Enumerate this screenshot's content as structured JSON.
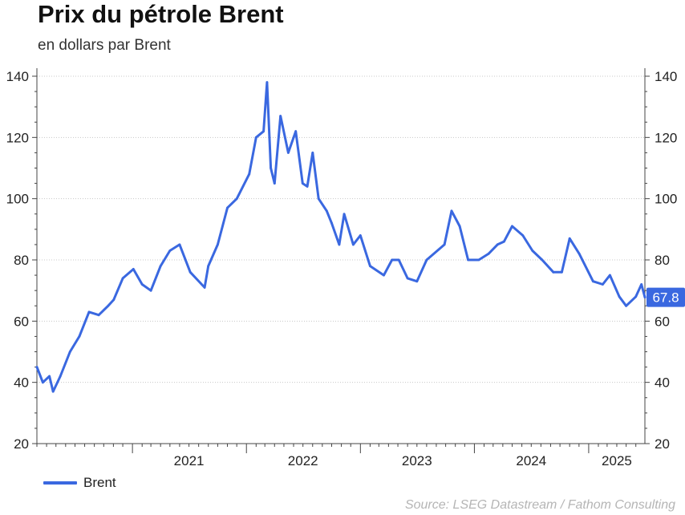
{
  "header": {
    "title": "Prix du pétrole Brent",
    "subtitle": "en dollars par Brent"
  },
  "legend": {
    "label": "Brent"
  },
  "source": "Source: LSEG Datastream / Fathom Consulting",
  "colors": {
    "series": "#3a68e0",
    "grid": "#c8c8c8",
    "axis": "#444444"
  },
  "chart_data": {
    "type": "line",
    "title": "Prix du pétrole Brent",
    "subtitle": "en dollars par Brent",
    "xlabel": "",
    "ylabel": "",
    "ylim": [
      20,
      140
    ],
    "xlim": [
      "2020-03-01",
      "2025-06-30"
    ],
    "yticks": [
      20,
      40,
      60,
      80,
      100,
      120,
      140
    ],
    "xticks": [
      "2021",
      "2022",
      "2023",
      "2024",
      "2025"
    ],
    "grid": true,
    "dual_y_axis": true,
    "legend_position": "bottom-left",
    "last_value_label": "67.8",
    "series": [
      {
        "name": "Brent",
        "x": [
          "2020-03-01",
          "2020-03-20",
          "2020-04-10",
          "2020-04-22",
          "2020-05-15",
          "2020-06-15",
          "2020-07-15",
          "2020-08-15",
          "2020-09-15",
          "2020-10-15",
          "2020-11-02",
          "2020-12-01",
          "2021-01-04",
          "2021-02-01",
          "2021-03-01",
          "2021-04-01",
          "2021-05-01",
          "2021-06-01",
          "2021-07-05",
          "2021-08-20",
          "2021-09-01",
          "2021-10-01",
          "2021-11-01",
          "2021-12-01",
          "2022-01-10",
          "2022-02-01",
          "2022-02-25",
          "2022-03-08",
          "2022-03-20",
          "2022-04-01",
          "2022-04-20",
          "2022-05-15",
          "2022-06-08",
          "2022-06-30",
          "2022-07-15",
          "2022-08-01",
          "2022-08-20",
          "2022-09-15",
          "2022-10-01",
          "2022-10-25",
          "2022-11-10",
          "2022-12-09",
          "2023-01-01",
          "2023-02-01",
          "2023-03-17",
          "2023-04-12",
          "2023-05-04",
          "2023-06-01",
          "2023-07-01",
          "2023-08-01",
          "2023-09-27",
          "2023-10-20",
          "2023-11-15",
          "2023-12-12",
          "2024-01-15",
          "2024-02-15",
          "2024-03-15",
          "2024-04-05",
          "2024-05-01",
          "2024-06-04",
          "2024-07-05",
          "2024-08-05",
          "2024-09-10",
          "2024-10-07",
          "2024-11-01",
          "2024-12-02",
          "2025-01-15",
          "2025-02-15",
          "2025-03-10",
          "2025-04-09",
          "2025-05-01",
          "2025-06-01",
          "2025-06-19",
          "2025-06-30"
        ],
        "values": [
          45,
          40,
          42,
          37,
          42,
          50,
          55,
          63,
          62,
          65,
          67,
          74,
          77,
          72,
          70,
          78,
          83,
          85,
          76,
          71,
          78,
          85,
          97,
          100,
          108,
          120,
          122,
          138,
          110,
          105,
          127,
          115,
          122,
          105,
          104,
          115,
          100,
          96,
          92,
          85,
          95,
          85,
          88,
          78,
          75,
          80,
          80,
          74,
          73,
          80,
          85,
          96,
          91,
          80,
          80,
          82,
          85,
          86,
          91,
          88,
          83,
          80,
          76,
          76,
          87,
          82,
          73,
          72,
          75,
          68,
          65,
          68,
          72,
          67.8
        ]
      }
    ]
  }
}
